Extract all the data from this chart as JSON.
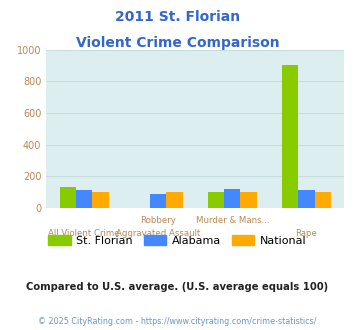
{
  "title_line1": "2011 St. Florian",
  "title_line2": "Violent Crime Comparison",
  "title_color": "#3366cc",
  "cat_labels_top": [
    "",
    "Robbery",
    "Murder & Mans...",
    ""
  ],
  "cat_labels_bot": [
    "All Violent Crime",
    "Aggravated Assault",
    "",
    "Rape"
  ],
  "st_florian": [
    130,
    0,
    100,
    900
  ],
  "alabama": [
    115,
    90,
    120,
    115
  ],
  "national": [
    100,
    100,
    100,
    100
  ],
  "color_florian": "#88cc00",
  "color_alabama": "#4488ff",
  "color_national": "#ffaa00",
  "ylim": [
    0,
    1000
  ],
  "yticks": [
    0,
    200,
    400,
    600,
    800,
    1000
  ],
  "axis_tick_color": "#bb8855",
  "grid_color": "#c8dde0",
  "bg_color": "#ddeef0",
  "legend_labels": [
    "St. Florian",
    "Alabama",
    "National"
  ],
  "footer_text": "Compared to U.S. average. (U.S. average equals 100)",
  "footer_color": "#222222",
  "copyright_text": "© 2025 CityRating.com - https://www.cityrating.com/crime-statistics/",
  "copyright_color": "#6699cc"
}
